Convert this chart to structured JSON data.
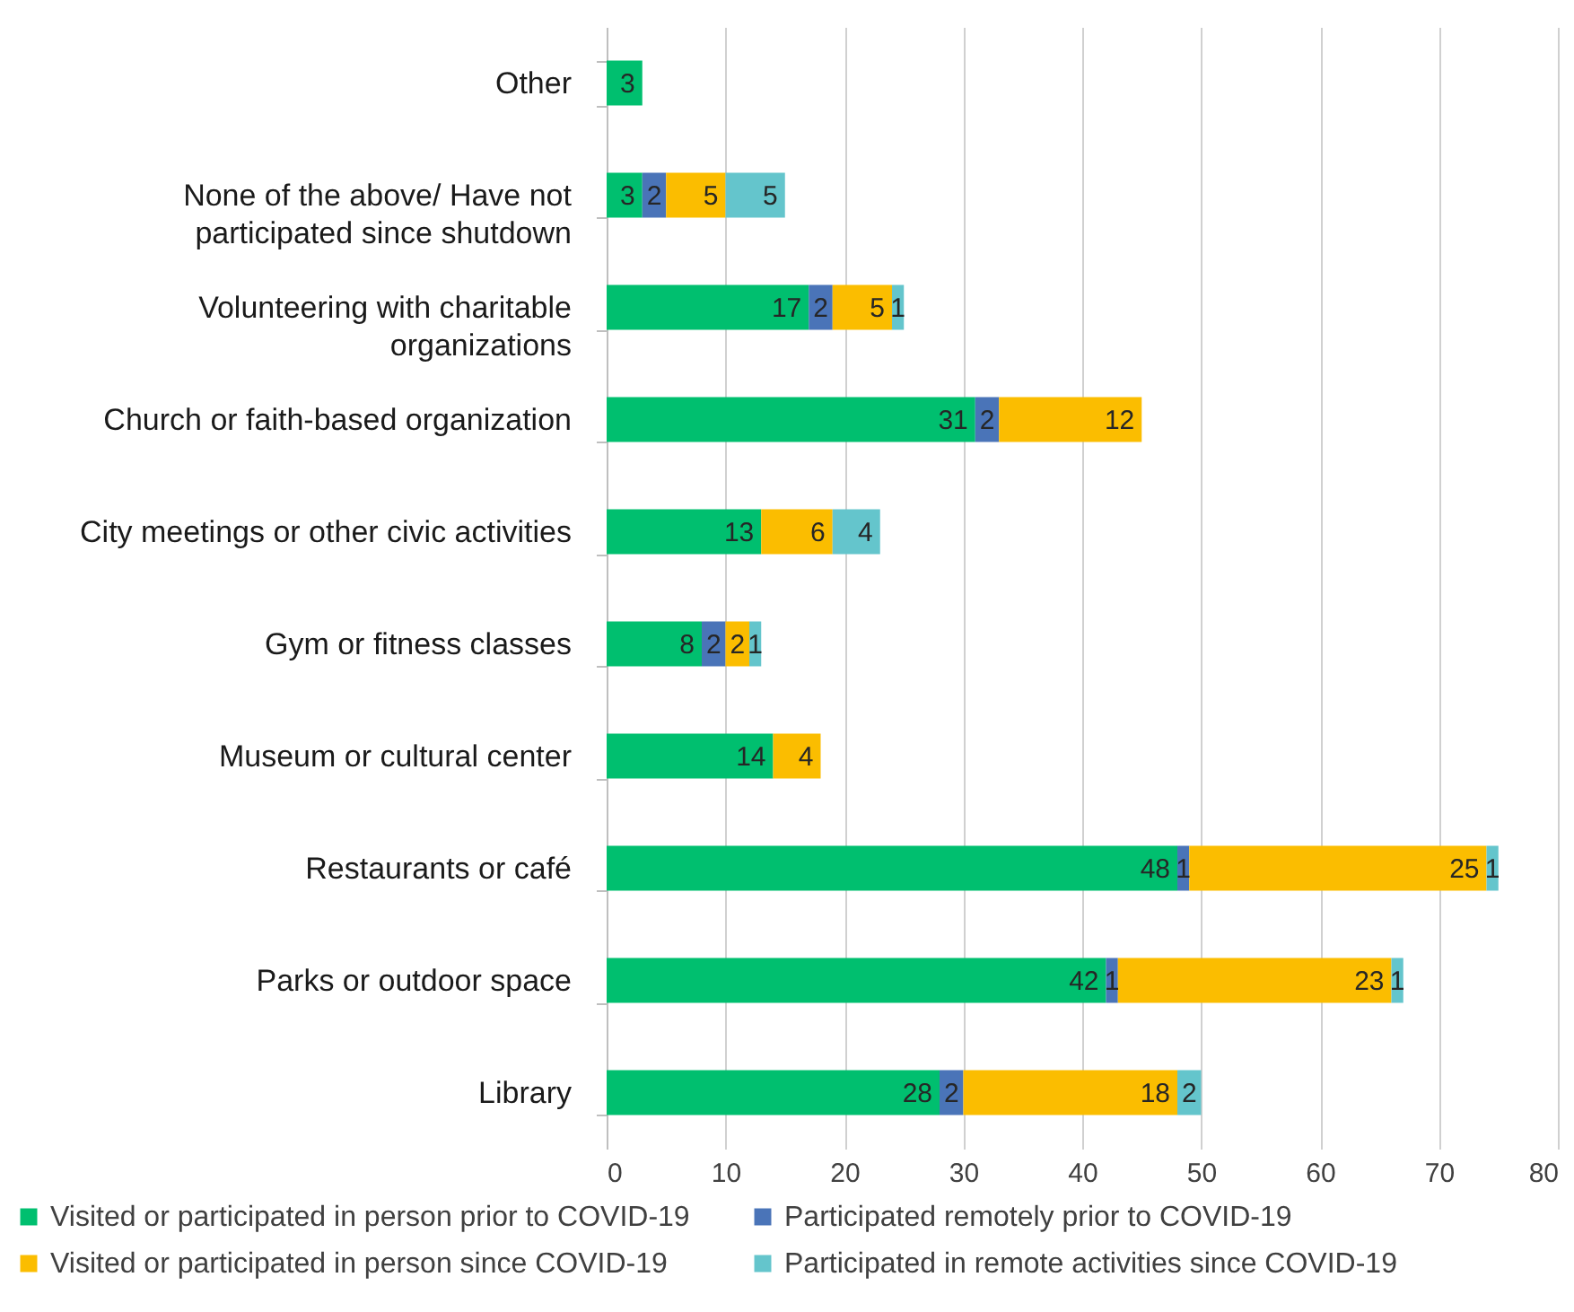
{
  "chart_data": {
    "type": "bar",
    "orientation": "horizontal",
    "stacked": true,
    "categories": [
      "Other",
      "None of the above/ Have not participated since shutdown",
      "Volunteering with charitable organizations",
      "Church or faith-based organization",
      "City meetings or other civic activities",
      "Gym or fitness classes",
      "Museum or cultural center",
      "Restaurants or café",
      "Parks or outdoor space",
      "Library"
    ],
    "series": [
      {
        "name": "Visited or participated in person prior to COVID-19",
        "color": "#00bf6f",
        "values": [
          3,
          3,
          17,
          31,
          13,
          8,
          14,
          48,
          42,
          28
        ]
      },
      {
        "name": "Participated remotely prior to COVID-19",
        "color": "#4a74b8",
        "values": [
          null,
          2,
          2,
          2,
          null,
          2,
          null,
          1,
          1,
          2
        ]
      },
      {
        "name": "Visited or participated in person since COVID-19",
        "color": "#fbbd00",
        "values": [
          null,
          5,
          5,
          12,
          6,
          2,
          4,
          25,
          23,
          18
        ]
      },
      {
        "name": "Participated in remote activities since COVID-19",
        "color": "#64c5cc",
        "values": [
          null,
          5,
          1,
          null,
          4,
          1,
          null,
          1,
          1,
          2
        ]
      }
    ],
    "xlim": [
      0,
      80
    ],
    "xticks": [
      0,
      10,
      20,
      30,
      40,
      50,
      60,
      70,
      80
    ],
    "grid": "x",
    "legend": "bottom",
    "data_labels": true
  }
}
